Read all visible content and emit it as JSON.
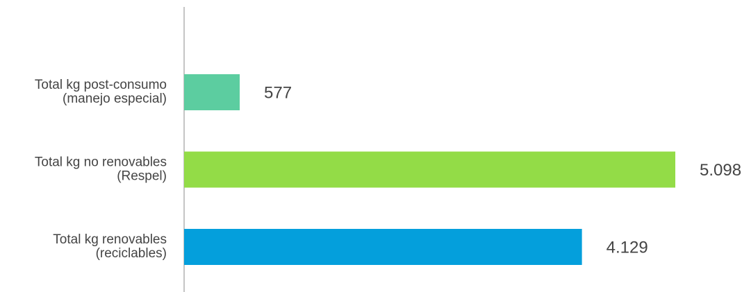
{
  "chart_data": {
    "type": "hbar",
    "categories": [
      [
        "Total kg post-consumo",
        "(manejo especial)"
      ],
      [
        "Total kg no renovables",
        "(Respel)"
      ],
      [
        "Total kg renovables",
        "(reciclables)"
      ]
    ],
    "values": [
      577,
      5098,
      4129
    ],
    "value_labels": [
      "577",
      "5.098",
      "4.129"
    ],
    "colors": [
      "#5ccda0",
      "#93dc47",
      "#049fdc"
    ]
  }
}
